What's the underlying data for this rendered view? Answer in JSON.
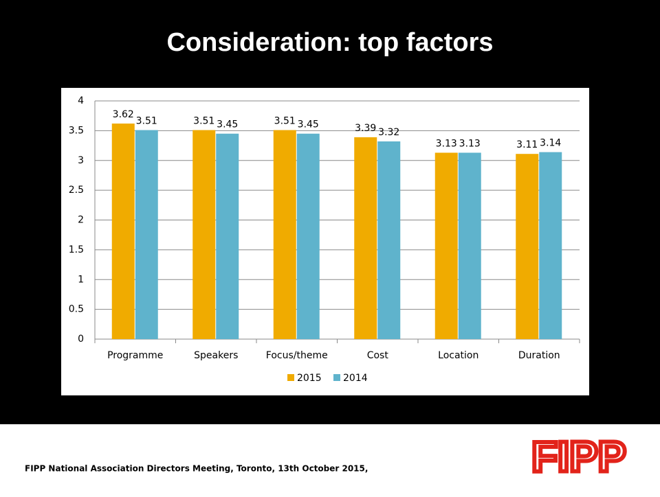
{
  "title": "Consideration: top factors",
  "chart_data": {
    "type": "bar",
    "categories": [
      "Programme",
      "Speakers",
      "Focus/theme",
      "Cost",
      "Location",
      "Duration"
    ],
    "series": [
      {
        "name": "2015",
        "color": "#f0ab00",
        "values": [
          3.62,
          3.51,
          3.51,
          3.39,
          3.13,
          3.11
        ]
      },
      {
        "name": "2014",
        "color": "#5fb3cc",
        "values": [
          3.51,
          3.45,
          3.45,
          3.32,
          3.13,
          3.14
        ]
      }
    ],
    "ylim": [
      0,
      4
    ],
    "yticks": [
      0,
      0.5,
      1,
      1.5,
      2,
      2.5,
      3,
      3.5,
      4
    ],
    "grid": true,
    "legend": "bottom"
  },
  "footer": "FIPP National Association Directors Meeting, Toronto, 13th October 2015,",
  "logo": "FIPP"
}
